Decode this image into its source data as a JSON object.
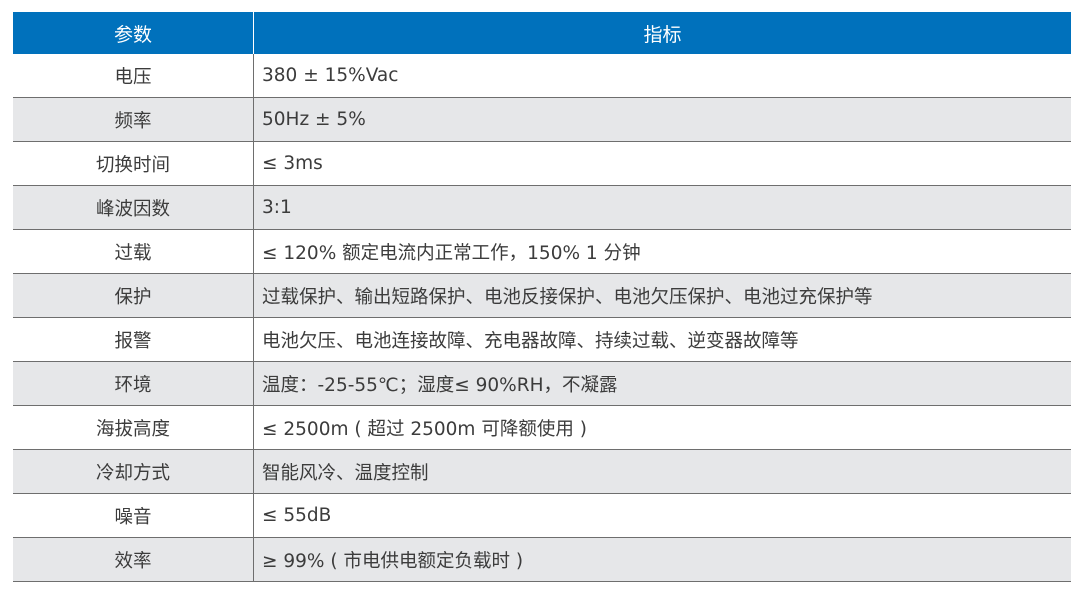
{
  "header": {
    "param": "参数",
    "spec": "指标"
  },
  "colors": {
    "header_bg": "#0071bc",
    "alt_row_bg": "#e6e7e9"
  },
  "rows": [
    {
      "param": "电压",
      "spec": "380 ± 15%Vac"
    },
    {
      "param": "频率",
      "spec": "50Hz ± 5%"
    },
    {
      "param": "切换时间",
      "spec": "≤ 3ms"
    },
    {
      "param": "峰波因数",
      "spec": "3:1"
    },
    {
      "param": "过载",
      "spec": "≤ 120% 额定电流内正常工作，150% 1 分钟"
    },
    {
      "param": "保护",
      "spec": "过载保护、输出短路保护、电池反接保护、电池欠压保护、电池过充保护等"
    },
    {
      "param": "报警",
      "spec": "电池欠压、电池连接故障、充电器故障、持续过载、逆变器故障等"
    },
    {
      "param": "环境",
      "spec": "温度：-25-55℃；湿度≤ 90%RH，不凝露"
    },
    {
      "param": "海拔高度",
      "spec": "≤ 2500m ( 超过 2500m 可降额使用 )"
    },
    {
      "param": "冷却方式",
      "spec": "智能风冷、温度控制"
    },
    {
      "param": "噪音",
      "spec": "≤ 55dB"
    },
    {
      "param": "效率",
      "spec": "≥ 99% ( 市电供电额定负载时 )"
    }
  ]
}
